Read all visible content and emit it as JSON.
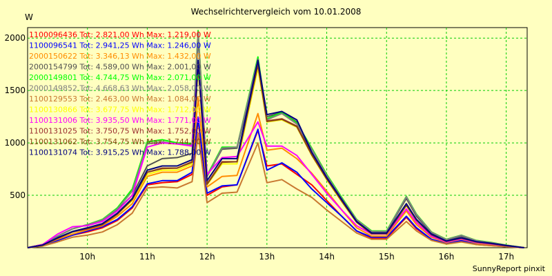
{
  "chart_data": {
    "type": "line",
    "title": "Wechselrichtervergleich vom 10.01.2008",
    "ylabel": "W",
    "footer": "SunnyReport pinxit",
    "ylim": [
      0,
      2100
    ],
    "yticks": [
      500,
      1000,
      1500,
      2000
    ],
    "xlim": [
      9.0,
      17.35
    ],
    "xticks": [
      10,
      11,
      12,
      13,
      14,
      15,
      16,
      17
    ],
    "xtick_labels": [
      "10h",
      "11h",
      "12h",
      "13h",
      "14h",
      "15h",
      "16h",
      "17h"
    ],
    "grid": true,
    "grid_color": "#00cc00",
    "legend_position": "top-left",
    "x": [
      9.0,
      9.25,
      9.5,
      9.75,
      10.0,
      10.25,
      10.5,
      10.75,
      11.0,
      11.25,
      11.5,
      11.75,
      11.85,
      12.0,
      12.25,
      12.5,
      12.85,
      13.0,
      13.25,
      13.5,
      13.75,
      14.0,
      14.25,
      14.5,
      14.75,
      15.0,
      15.33,
      15.5,
      15.75,
      16.0,
      16.25,
      16.5,
      16.75,
      17.0,
      17.3
    ],
    "series": [
      {
        "name": "1100096436",
        "legend": "1100096436 Tot: 2.821,00 Wh Max: 1.219,00 W",
        "color": "#ff0000",
        "values": [
          0,
          20,
          70,
          120,
          150,
          190,
          260,
          380,
          600,
          620,
          630,
          700,
          1219,
          500,
          580,
          600,
          1120,
          780,
          800,
          700,
          600,
          450,
          300,
          160,
          90,
          90,
          290,
          180,
          80,
          40,
          60,
          30,
          20,
          10,
          0
        ]
      },
      {
        "name": "1100096541",
        "legend": "1100096541 Tot: 2.941,25 Wh Max: 1.246,00 W",
        "color": "#0000ff",
        "values": [
          0,
          20,
          70,
          120,
          160,
          200,
          270,
          390,
          610,
          640,
          640,
          720,
          1246,
          520,
          590,
          600,
          1130,
          740,
          810,
          720,
          560,
          430,
          300,
          160,
          100,
          100,
          300,
          190,
          80,
          40,
          70,
          40,
          25,
          10,
          0
        ]
      },
      {
        "name": "2000150622",
        "legend": "2000150622 Tot: 3.346,13 Wh Max: 1.432,00 W",
        "color": "#ff8c00",
        "values": [
          0,
          25,
          80,
          130,
          170,
          210,
          300,
          420,
          680,
          720,
          720,
          780,
          1432,
          580,
          680,
          690,
          1280,
          930,
          950,
          850,
          710,
          540,
          360,
          190,
          110,
          110,
          350,
          220,
          100,
          50,
          80,
          45,
          30,
          15,
          0
        ]
      },
      {
        "name": "2000154799",
        "legend": "2000154799 Tot: 4.589,00 Wh Max: 2.001,00 W",
        "color": "#505050",
        "values": [
          0,
          30,
          110,
          180,
          220,
          260,
          360,
          500,
          780,
          850,
          860,
          900,
          2001,
          680,
          940,
          950,
          1760,
          1250,
          1290,
          1200,
          900,
          680,
          460,
          250,
          150,
          150,
          470,
          300,
          140,
          70,
          110,
          65,
          45,
          20,
          0
        ]
      },
      {
        "name": "2000149801",
        "legend": "2000149801 Tot: 4.744,75 Wh Max: 2.071,00 W",
        "color": "#00ff00",
        "values": [
          0,
          30,
          110,
          180,
          220,
          270,
          380,
          560,
          1010,
          1030,
          1000,
          990,
          2071,
          690,
          960,
          960,
          1820,
          1230,
          1290,
          1190,
          950,
          700,
          480,
          270,
          160,
          160,
          490,
          320,
          150,
          80,
          120,
          70,
          50,
          25,
          0
        ]
      },
      {
        "name": "2000149852",
        "legend": "2000149852 Tot: 4.668,63 Wh Max: 2.058,00 W",
        "color": "#808080",
        "values": [
          0,
          30,
          110,
          180,
          220,
          265,
          370,
          540,
          990,
          1010,
          990,
          980,
          2058,
          680,
          950,
          960,
          1800,
          1220,
          1280,
          1180,
          940,
          690,
          470,
          265,
          155,
          155,
          485,
          315,
          148,
          78,
          118,
          68,
          48,
          24,
          0
        ]
      },
      {
        "name": "1100129553",
        "legend": "1100129553 Tot: 2.463,00 Wh Max: 1.084,00 W",
        "color": "#c87830",
        "values": [
          0,
          15,
          55,
          100,
          120,
          150,
          220,
          330,
          570,
          580,
          570,
          630,
          1084,
          430,
          520,
          530,
          1000,
          620,
          650,
          560,
          480,
          360,
          250,
          140,
          80,
          80,
          250,
          160,
          70,
          35,
          55,
          30,
          20,
          10,
          0
        ]
      },
      {
        "name": "1100130866",
        "legend": "1100130866 Tot: 3.677,75 Wh Max: 1.712,00 W",
        "color": "#ffff00",
        "values": [
          0,
          25,
          90,
          150,
          190,
          220,
          320,
          450,
          700,
          740,
          740,
          800,
          1712,
          600,
          800,
          800,
          1712,
          1200,
          1220,
          1150,
          880,
          650,
          440,
          240,
          130,
          130,
          400,
          260,
          120,
          60,
          90,
          55,
          40,
          20,
          0
        ]
      },
      {
        "name": "1100131006",
        "legend": "1100131006 Tot: 3.935,50 Wh Max: 1.771,00 W",
        "color": "#ff00ff",
        "values": [
          0,
          30,
          130,
          200,
          210,
          250,
          350,
          500,
          960,
          1000,
          990,
          970,
          1771,
          700,
          860,
          870,
          1200,
          970,
          970,
          880,
          700,
          520,
          360,
          210,
          130,
          130,
          370,
          240,
          110,
          55,
          85,
          50,
          35,
          18,
          0
        ]
      },
      {
        "name": "1100131025",
        "legend": "1100131025 Tot: 3.750,75 Wh Max: 1.752,00 W",
        "color": "#9b2d30",
        "values": [
          0,
          25,
          90,
          150,
          180,
          220,
          320,
          460,
          720,
          760,
          760,
          820,
          1752,
          610,
          820,
          820,
          1752,
          1210,
          1230,
          1160,
          890,
          660,
          450,
          245,
          135,
          135,
          410,
          265,
          125,
          62,
          92,
          56,
          40,
          20,
          0
        ]
      },
      {
        "name": "1100131062",
        "legend": "1100131062 Tot: 3.754,75 Wh Max: 1.744,00 W",
        "color": "#8b4513",
        "values": [
          0,
          25,
          90,
          150,
          185,
          220,
          325,
          460,
          720,
          755,
          760,
          815,
          1744,
          605,
          815,
          820,
          1744,
          1205,
          1225,
          1155,
          885,
          655,
          445,
          243,
          133,
          133,
          405,
          262,
          123,
          61,
          91,
          55,
          39,
          19,
          0
        ]
      },
      {
        "name": "1100131074",
        "legend": "1100131074 Tot: 3.915,25 Wh Max: 1.788,00 W",
        "color": "#000080",
        "values": [
          0,
          25,
          95,
          155,
          190,
          230,
          330,
          470,
          740,
          780,
          780,
          840,
          1788,
          640,
          850,
          850,
          1788,
          1270,
          1300,
          1220,
          910,
          670,
          460,
          250,
          140,
          140,
          420,
          270,
          130,
          64,
          95,
          58,
          42,
          21,
          0
        ]
      }
    ]
  }
}
